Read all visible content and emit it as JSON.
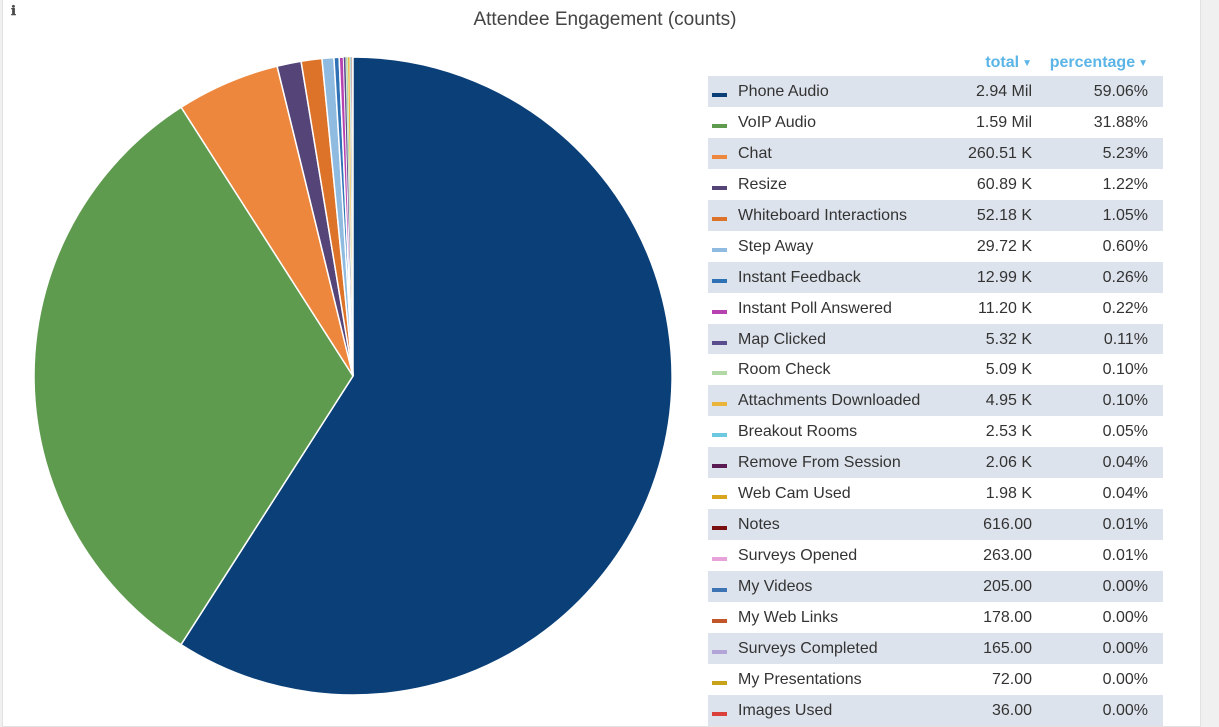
{
  "panel": {
    "info_icon": "ℹ",
    "title": "Attendee Engagement (counts)"
  },
  "legend": {
    "total_header": "total",
    "percentage_header": "percentage",
    "sort_icon": "caret-down-icon"
  },
  "chart_data": {
    "type": "pie",
    "title": "Attendee Engagement (counts)",
    "start_angle_deg": 0,
    "direction": "clockwise",
    "slices": [
      {
        "label": "Phone Audio",
        "total": "2.94 Mil",
        "percentage": "59.06%",
        "value": 59.06,
        "color": "#0a3f78"
      },
      {
        "label": "VoIP Audio",
        "total": "1.59 Mil",
        "percentage": "31.88%",
        "value": 31.88,
        "color": "#5f9b4e"
      },
      {
        "label": "Chat",
        "total": "260.51 K",
        "percentage": "5.23%",
        "value": 5.23,
        "color": "#ed873d"
      },
      {
        "label": "Resize",
        "total": "60.89 K",
        "percentage": "1.22%",
        "value": 1.22,
        "color": "#544477"
      },
      {
        "label": "Whiteboard Interactions",
        "total": "52.18 K",
        "percentage": "1.05%",
        "value": 1.05,
        "color": "#dc7329"
      },
      {
        "label": "Step Away",
        "total": "29.72 K",
        "percentage": "0.60%",
        "value": 0.6,
        "color": "#8fbbe0"
      },
      {
        "label": "Instant Feedback",
        "total": "12.99 K",
        "percentage": "0.26%",
        "value": 0.26,
        "color": "#2e72b5"
      },
      {
        "label": "Instant Poll Answered",
        "total": "11.20 K",
        "percentage": "0.22%",
        "value": 0.22,
        "color": "#b841b0"
      },
      {
        "label": "Map Clicked",
        "total": "5.32 K",
        "percentage": "0.11%",
        "value": 0.11,
        "color": "#5a4d8e"
      },
      {
        "label": "Room Check",
        "total": "5.09 K",
        "percentage": "0.10%",
        "value": 0.1,
        "color": "#b1d8a5"
      },
      {
        "label": "Attachments Downloaded",
        "total": "4.95 K",
        "percentage": "0.10%",
        "value": 0.1,
        "color": "#eab53a"
      },
      {
        "label": "Breakout Rooms",
        "total": "2.53 K",
        "percentage": "0.05%",
        "value": 0.05,
        "color": "#6cc9df"
      },
      {
        "label": "Remove From Session",
        "total": "2.06 K",
        "percentage": "0.04%",
        "value": 0.04,
        "color": "#5a1a52"
      },
      {
        "label": "Web Cam Used",
        "total": "1.98 K",
        "percentage": "0.04%",
        "value": 0.04,
        "color": "#d9a51f"
      },
      {
        "label": "Notes",
        "total": "616.00",
        "percentage": "0.01%",
        "value": 0.01,
        "color": "#7a0f0f"
      },
      {
        "label": "Surveys Opened",
        "total": "263.00",
        "percentage": "0.01%",
        "value": 0.01,
        "color": "#e6a2d9"
      },
      {
        "label": "My Videos",
        "total": "205.00",
        "percentage": "0.00%",
        "value": 0.004,
        "color": "#3c74b4"
      },
      {
        "label": "My Web Links",
        "total": "178.00",
        "percentage": "0.00%",
        "value": 0.0036,
        "color": "#c0562a"
      },
      {
        "label": "Surveys Completed",
        "total": "165.00",
        "percentage": "0.00%",
        "value": 0.0033,
        "color": "#b3a4d8"
      },
      {
        "label": "My Presentations",
        "total": "72.00",
        "percentage": "0.00%",
        "value": 0.0014,
        "color": "#c8a218"
      },
      {
        "label": "Images Used",
        "total": "36.00",
        "percentage": "0.00%",
        "value": 0.0007,
        "color": "#d9413a"
      }
    ]
  }
}
